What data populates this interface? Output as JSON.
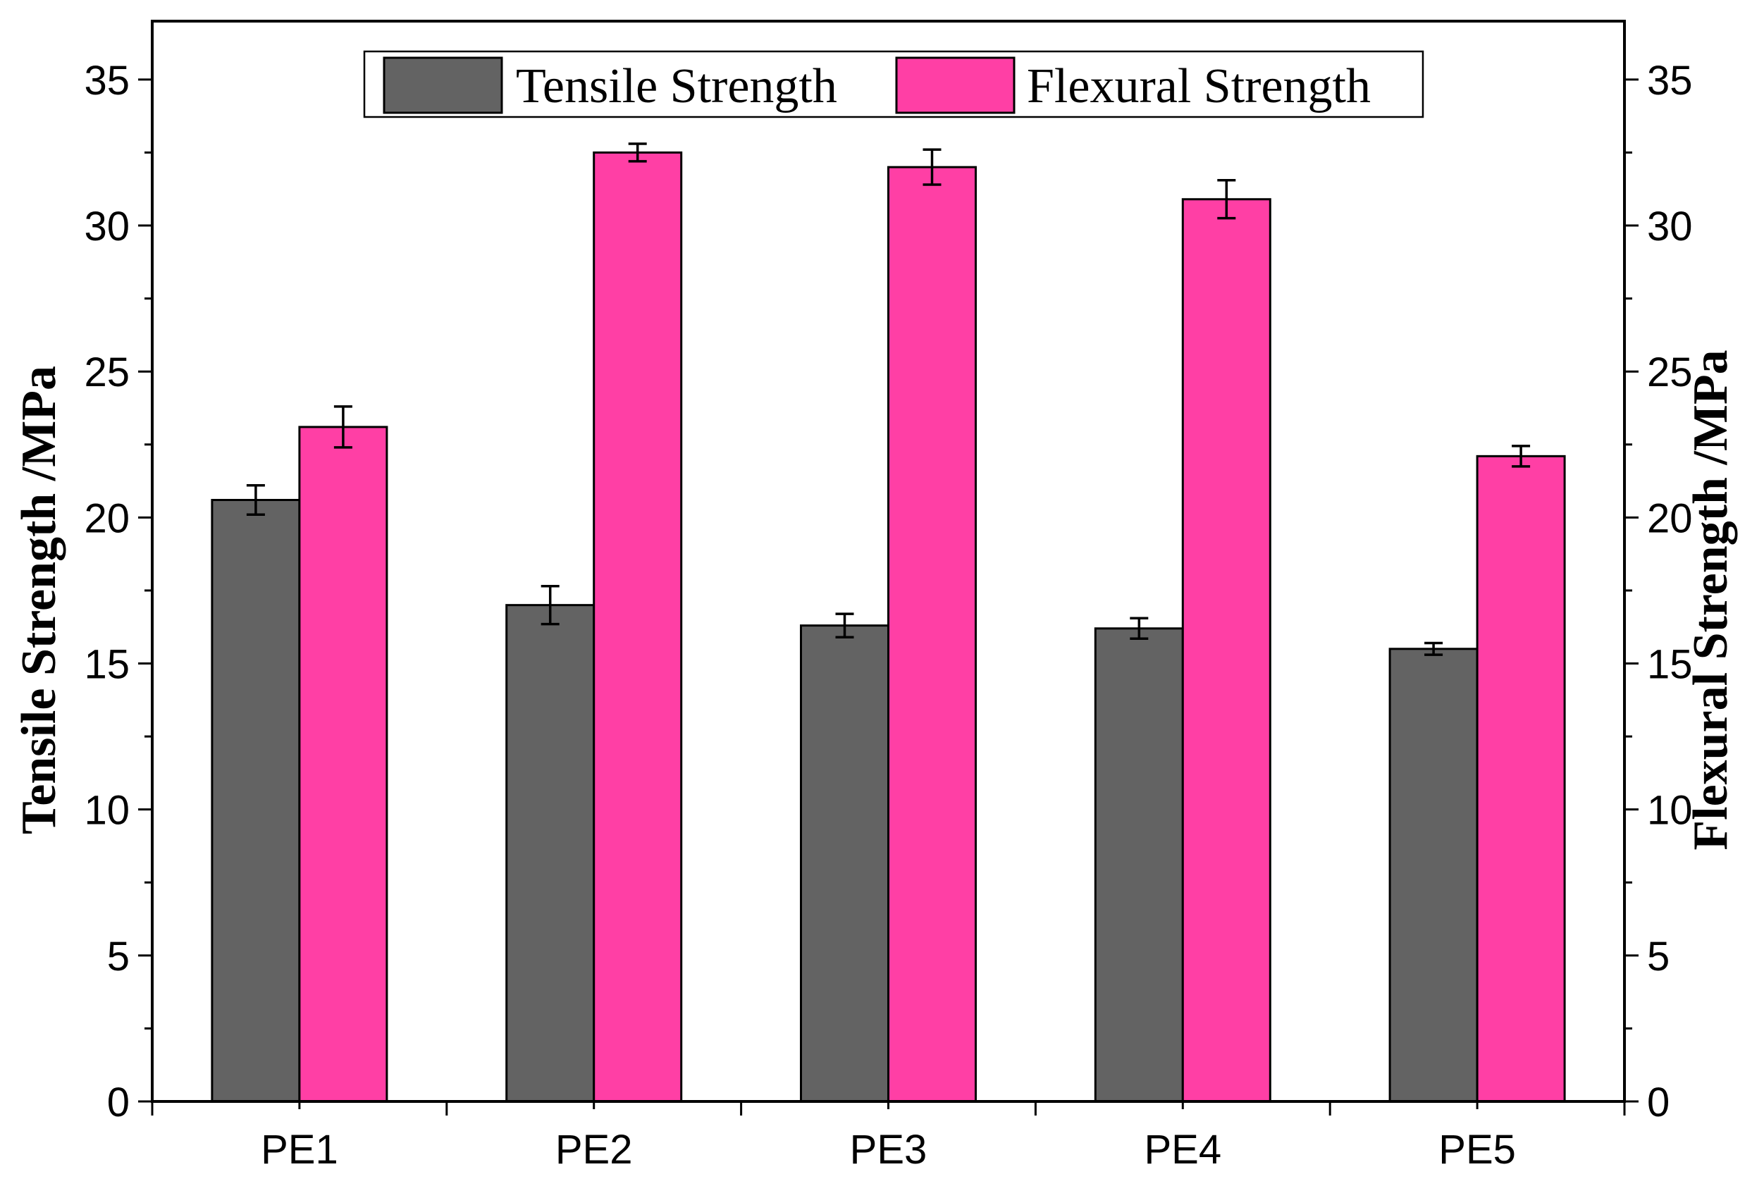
{
  "chart_data": {
    "type": "bar",
    "title": "",
    "categories": [
      "PE1",
      "PE2",
      "PE3",
      "PE4",
      "PE5"
    ],
    "series": [
      {
        "name": "Tensile Strength",
        "axis": "left",
        "color": "#636363",
        "values": [
          20.6,
          17.0,
          16.3,
          16.2,
          15.5
        ],
        "errors": [
          0.5,
          0.65,
          0.4,
          0.35,
          0.2
        ]
      },
      {
        "name": "Flexural Strength",
        "axis": "right",
        "color": "#ff3fa5",
        "values": [
          23.1,
          32.5,
          32.0,
          30.9,
          22.1
        ],
        "errors": [
          0.7,
          0.3,
          0.6,
          0.65,
          0.35
        ]
      }
    ],
    "ylabel_left": "Tensile Strength /MPa",
    "ylabel_right": "Flexural Strength /MPa",
    "xlabel": "",
    "ylim": [
      0,
      37
    ],
    "yticks": [
      0,
      5,
      10,
      15,
      20,
      25,
      30,
      35
    ],
    "ytick_labels": [
      "0",
      "5",
      "10",
      "15",
      "20",
      "25",
      "30",
      "35"
    ],
    "grid": false,
    "legend_position": "top-center"
  }
}
